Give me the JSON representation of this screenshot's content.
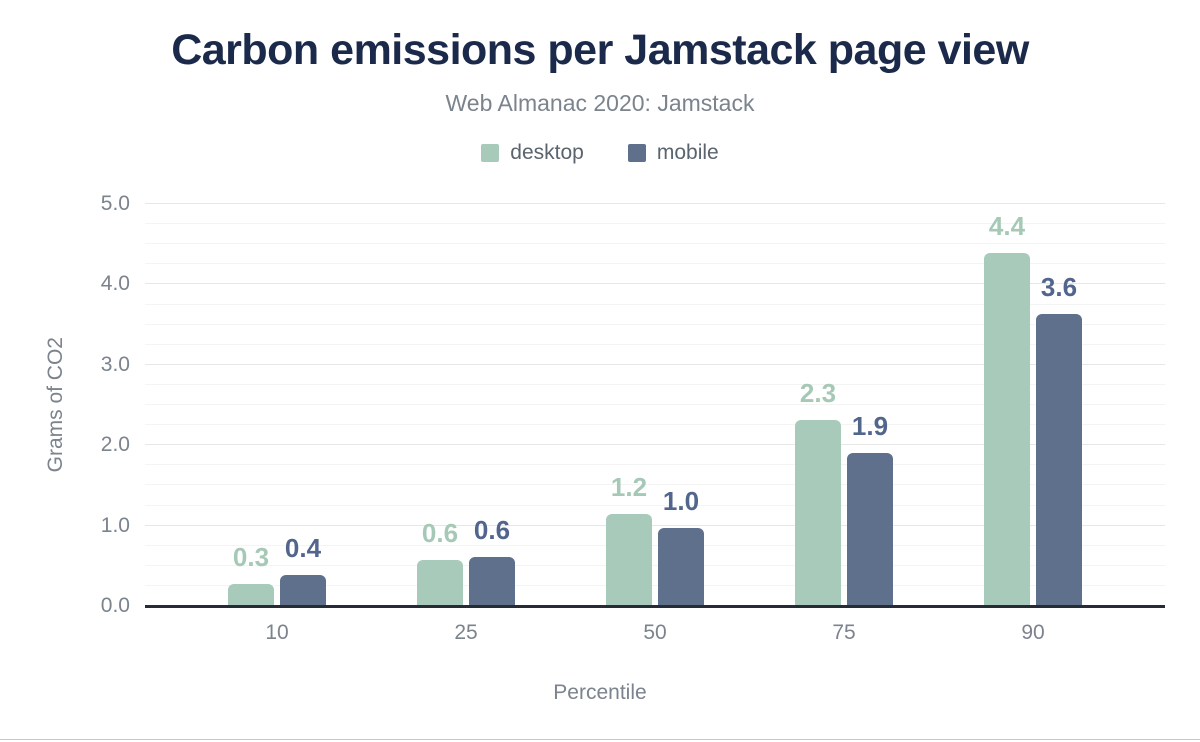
{
  "page": {
    "background": "#ffffff"
  },
  "chart_data": {
    "type": "bar",
    "title": "Carbon emissions per Jamstack page view",
    "subtitle": "Web Almanac 2020: Jamstack",
    "xlabel": "Percentile",
    "ylabel": "Grams of CO2",
    "categories": [
      "10",
      "25",
      "50",
      "75",
      "90"
    ],
    "series": [
      {
        "name": "desktop",
        "color": "#a8cabb",
        "label_color": "#a5c9b6",
        "values": [
          0.3,
          0.6,
          1.2,
          2.3,
          4.4
        ],
        "values_precise": [
          0.27,
          0.57,
          1.15,
          2.31,
          4.39
        ]
      },
      {
        "name": "mobile",
        "color": "#5e708c",
        "label_color": "#52658c",
        "values": [
          0.4,
          0.6,
          1.0,
          1.9,
          3.6
        ],
        "values_precise": [
          0.38,
          0.61,
          0.97,
          1.9,
          3.63
        ]
      }
    ],
    "ylim": [
      0,
      5
    ],
    "ytick_step": 1,
    "y_minor_step": 0.25,
    "ytick_labels": [
      "0.0",
      "1.0",
      "2.0",
      "3.0",
      "4.0",
      "5.0"
    ],
    "legend_position": "top",
    "grid": true
  },
  "colors": {
    "title": "#1b2a4a",
    "subtitle": "#7b838d",
    "axis_text": "#7b838d",
    "legend_text": "#5a646e",
    "axis_line": "#262b35",
    "grid_major": "#e7e7e7",
    "grid_minor": "#f4f4f4",
    "bottom_divider": "#c9c9c9"
  }
}
